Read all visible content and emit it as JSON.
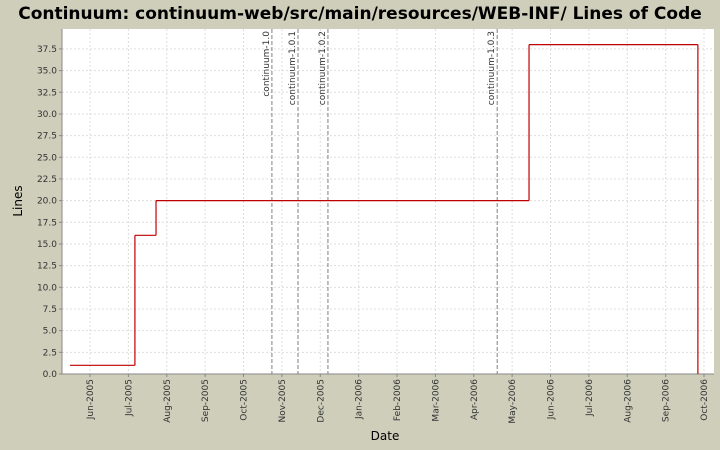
{
  "chart_data": {
    "type": "step",
    "title": "Continuum: continuum-web/src/main/resources/WEB-INF/ Lines of Code",
    "x_label": "Date",
    "y_label": "Lines",
    "x": [
      -0.52,
      1.17,
      1.72,
      11.44,
      15.84
    ],
    "series": [
      {
        "name": "Lines",
        "color": "#c00000",
        "values": [
          1,
          16,
          20,
          38,
          0
        ]
      }
    ],
    "xlim": [
      -0.73,
      16.26
    ],
    "xticks": [
      {
        "value": 0,
        "label": "Jun-2005"
      },
      {
        "value": 1,
        "label": "Jul-2005"
      },
      {
        "value": 2,
        "label": "Aug-2005"
      },
      {
        "value": 3,
        "label": "Sep-2005"
      },
      {
        "value": 4,
        "label": "Oct-2005"
      },
      {
        "value": 5,
        "label": "Nov-2005"
      },
      {
        "value": 6,
        "label": "Dec-2005"
      },
      {
        "value": 7,
        "label": "Jan-2006"
      },
      {
        "value": 8,
        "label": "Feb-2006"
      },
      {
        "value": 9,
        "label": "Mar-2006"
      },
      {
        "value": 10,
        "label": "Apr-2006"
      },
      {
        "value": 11,
        "label": "May-2006"
      },
      {
        "value": 12,
        "label": "Jun-2006"
      },
      {
        "value": 13,
        "label": "Jul-2006"
      },
      {
        "value": 14,
        "label": "Aug-2006"
      },
      {
        "value": 15,
        "label": "Sep-2006"
      },
      {
        "value": 16,
        "label": "Oct-2006"
      }
    ],
    "ylim": [
      0,
      39.8
    ],
    "yticks": [
      {
        "value": 0,
        "label": "0.0"
      },
      2.5,
      {
        "value": 5,
        "label": "5.0"
      },
      7.5,
      {
        "value": 10,
        "label": "10.0"
      },
      12.5,
      {
        "value": 15,
        "label": "15.0"
      },
      17.5,
      {
        "value": 20,
        "label": "20.0"
      },
      22.5,
      {
        "value": 25,
        "label": "25.0"
      },
      27.5,
      {
        "value": 30,
        "label": "30.0"
      },
      32.5,
      {
        "value": 35,
        "label": "35.0"
      },
      37.5
    ],
    "grid": true,
    "markers": [
      {
        "x": 4.74,
        "label": "continuum-1.0"
      },
      {
        "x": 5.42,
        "label": "continuum-1.0.1"
      },
      {
        "x": 6.2,
        "label": "continuum-1.0.2"
      },
      {
        "x": 10.61,
        "label": "continuum-1.0.3"
      }
    ]
  }
}
